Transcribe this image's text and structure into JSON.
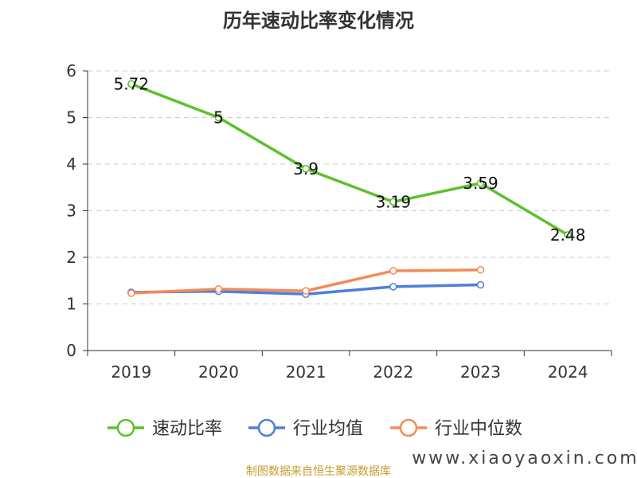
{
  "title": "历年速动比率变化情况",
  "source": "制图数据来自恒生聚源数据库",
  "watermark": "www.xiaoyaoxin.com",
  "chart_data": {
    "type": "line",
    "title": "历年速动比率变化情况",
    "categories": [
      "2019",
      "2020",
      "2021",
      "2022",
      "2023",
      "2024"
    ],
    "ylim": [
      0,
      6
    ],
    "yticks": [
      0,
      1,
      2,
      3,
      4,
      5,
      6
    ],
    "grid": true,
    "legend_position": "bottom",
    "series": [
      {
        "name": "速动比率",
        "color": "#5cc12b",
        "values": [
          5.72,
          5,
          3.9,
          3.19,
          3.59,
          2.48
        ],
        "labels": [
          "5.72",
          "5",
          "3.9",
          "3.19",
          "3.59",
          "2.48"
        ]
      },
      {
        "name": "行业均值",
        "color": "#4e7fdc",
        "values": [
          1.25,
          1.27,
          1.21,
          1.37,
          1.41,
          null
        ]
      },
      {
        "name": "行业中位数",
        "color": "#f28c5a",
        "values": [
          1.23,
          1.32,
          1.28,
          1.71,
          1.73,
          null
        ]
      }
    ]
  }
}
